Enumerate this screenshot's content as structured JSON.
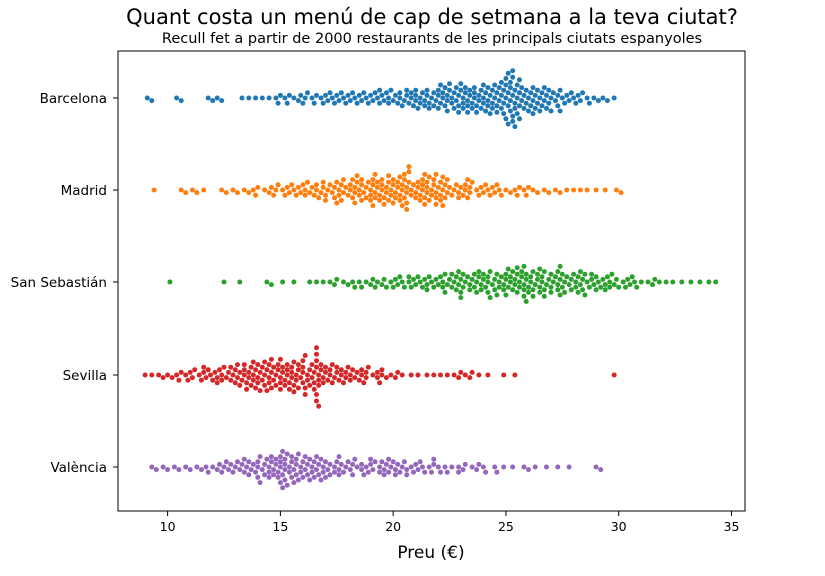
{
  "chart_data": {
    "type": "scatter",
    "subtype": "swarm",
    "title": "Quant costa un menú de cap de setmana a la teva ciutat?",
    "subtitle": "Recull fet a partir de 2000 restaurants de les principals ciutats espanyoles",
    "xlabel": "Preu (€)",
    "ylabel": "",
    "xlim": [
      7.8,
      35.6
    ],
    "xticks": [
      10,
      15,
      20,
      25,
      30,
      35
    ],
    "grid": false,
    "legend": "none",
    "categories": [
      "Barcelona",
      "Madrid",
      "San Sebastián",
      "Sevilla",
      "València"
    ],
    "series": [
      {
        "category": "Barcelona",
        "color": "#1f77b4",
        "values": [
          9.1,
          9.3,
          10.4,
          10.6,
          11.8,
          12.0,
          12.2,
          12.4,
          13.3,
          13.6,
          13.9,
          14.2,
          14.5,
          14.8,
          15.0,
          15.2,
          15.4,
          15.6,
          15.8,
          16.0,
          16.2,
          16.4,
          16.6,
          16.8,
          17.0,
          17.1,
          17.3,
          17.5,
          17.7,
          17.9,
          18.1,
          18.3,
          18.5,
          18.7,
          18.9,
          19.1,
          19.2,
          19.4,
          19.6,
          19.8,
          20.0,
          20.1,
          20.3,
          20.4,
          20.6,
          20.8,
          20.9,
          21.1,
          21.2,
          21.4,
          21.5,
          21.6,
          21.8,
          21.9,
          22.0,
          22.1,
          22.3,
          22.4,
          22.5,
          22.6,
          22.8,
          22.9,
          23.0,
          23.1,
          23.2,
          23.3,
          23.5,
          23.6,
          23.7,
          23.8,
          23.9,
          24.0,
          24.1,
          24.2,
          24.3,
          24.4,
          24.5,
          24.6,
          24.7,
          24.8,
          24.9,
          25.0,
          25.1,
          25.2,
          25.3,
          25.4,
          25.5,
          25.6,
          25.7,
          25.8,
          25.9,
          26.0,
          26.1,
          26.2,
          26.3,
          26.4,
          26.5,
          26.6,
          26.7,
          26.8,
          26.9,
          27.0,
          27.1,
          27.2,
          27.3,
          27.4,
          27.5,
          27.6,
          27.8,
          27.9,
          28.1,
          28.2,
          28.4,
          28.6,
          28.7,
          28.9,
          29.1,
          29.3,
          29.5,
          29.8,
          20.5,
          21.0,
          21.7,
          22.2,
          22.7,
          23.4,
          24.0,
          24.6,
          25.0,
          25.3,
          25.6,
          26.0,
          26.4,
          23.0,
          23.8,
          24.9,
          25.2,
          25.5,
          22.0,
          22.5,
          24.3,
          25.1,
          25.4,
          21.3,
          21.8,
          23.2,
          24.8,
          25.6,
          26.2,
          22.9,
          23.6,
          24.4,
          25.0,
          19.5,
          20.2,
          21.0,
          22.3,
          23.1,
          24.2,
          25.3,
          26.6,
          27.4,
          18.6,
          19.3,
          20.6,
          21.4,
          22.6,
          23.4,
          24.5,
          25.7,
          26.8,
          17.2,
          18.0,
          18.8,
          19.9,
          20.7,
          21.6,
          22.1,
          23.3,
          24.1,
          25.2,
          26.1,
          27.0,
          16.1,
          16.9,
          17.6,
          18.4,
          19.0,
          19.7,
          20.3,
          21.2,
          22.4,
          23.5,
          24.7,
          25.5,
          26.5,
          27.7,
          15.3,
          16.5,
          17.4,
          18.2,
          19.8,
          21.0,
          22.0,
          22.8,
          23.9,
          24.6,
          25.8,
          26.9,
          28.0,
          14.9,
          15.9,
          17.8,
          19.4,
          20.8,
          22.2,
          23.7,
          24.9,
          26.3,
          27.3,
          28.3,
          21.5,
          22.7,
          23.3,
          24.2,
          25.1,
          25.9,
          26.7,
          22.4,
          23.1,
          24.0,
          24.8,
          25.4,
          26.2,
          23.6,
          24.4,
          25.0,
          25.6,
          22.9,
          25.3,
          25.2,
          25.4,
          25.3,
          25.1
        ]
      },
      {
        "category": "Madrid",
        "color": "#ff7f0e",
        "values": [
          9.4,
          10.6,
          10.8,
          11.1,
          11.3,
          11.6,
          12.4,
          12.6,
          12.9,
          13.1,
          13.4,
          13.6,
          13.8,
          14.0,
          14.3,
          14.5,
          14.7,
          14.9,
          15.1,
          15.2,
          15.4,
          15.6,
          15.8,
          16.0,
          16.1,
          16.3,
          16.5,
          16.6,
          16.8,
          16.9,
          17.1,
          17.2,
          17.4,
          17.5,
          17.7,
          17.8,
          18.0,
          18.1,
          18.2,
          18.4,
          18.5,
          18.6,
          18.8,
          18.9,
          19.0,
          19.1,
          19.3,
          19.4,
          19.5,
          19.6,
          19.8,
          19.9,
          20.0,
          20.1,
          20.2,
          20.4,
          20.5,
          20.6,
          20.7,
          20.8,
          21.0,
          21.1,
          21.2,
          21.3,
          21.4,
          21.6,
          21.7,
          21.8,
          21.9,
          22.0,
          22.2,
          22.3,
          22.5,
          22.6,
          22.8,
          22.9,
          23.1,
          23.2,
          23.4,
          23.5,
          23.7,
          23.9,
          24.0,
          24.2,
          24.4,
          24.6,
          24.8,
          25.0,
          25.2,
          25.4,
          25.6,
          25.8,
          26.0,
          26.2,
          26.4,
          26.7,
          26.9,
          27.2,
          27.4,
          27.7,
          28.0,
          28.3,
          28.6,
          29.0,
          29.4,
          29.9,
          30.1,
          16.4,
          17.0,
          17.6,
          18.3,
          18.7,
          19.2,
          19.7,
          20.3,
          20.9,
          21.5,
          22.1,
          22.7,
          23.3,
          24.1,
          17.3,
          17.9,
          18.4,
          19.0,
          19.5,
          20.0,
          20.5,
          21.0,
          21.6,
          22.2,
          23.0,
          18.1,
          18.6,
          19.1,
          19.6,
          20.1,
          20.6,
          21.1,
          21.7,
          22.4,
          19.3,
          19.8,
          20.3,
          20.7,
          21.3,
          21.9,
          15.5,
          16.2,
          17.0,
          17.8,
          18.5,
          19.2,
          20.0,
          20.8,
          21.5,
          22.3,
          23.2,
          24.3,
          25.5,
          14.6,
          15.3,
          16.1,
          16.9,
          17.6,
          18.3,
          19.1,
          19.9,
          20.7,
          21.4,
          22.1,
          22.9,
          23.8,
          24.7,
          25.9,
          13.9,
          14.8,
          15.7,
          16.6,
          17.4,
          18.2,
          19.0,
          19.8,
          20.6,
          21.5,
          22.4,
          23.4,
          24.5,
          15.9,
          16.7,
          17.5,
          18.3,
          19.2,
          20.2,
          21.2,
          22.2,
          23.3,
          17.7,
          18.6,
          19.5,
          20.4,
          21.3,
          22.1,
          18.8,
          19.7,
          20.5,
          21.4,
          20.3,
          20.6,
          21.9,
          21.8,
          21.9,
          20.4,
          19.4
        ]
      },
      {
        "category": "San Sebastián",
        "color": "#2ca02c",
        "values": [
          10.1,
          12.5,
          13.2,
          14.4,
          14.6,
          15.1,
          15.6,
          16.3,
          16.6,
          16.9,
          17.2,
          17.5,
          17.8,
          18.0,
          18.3,
          18.5,
          18.8,
          19.0,
          19.2,
          19.5,
          19.7,
          19.9,
          20.1,
          20.3,
          20.5,
          20.7,
          20.9,
          21.1,
          21.3,
          21.5,
          21.7,
          21.9,
          22.1,
          22.2,
          22.4,
          22.6,
          22.8,
          22.9,
          23.1,
          23.3,
          23.4,
          23.6,
          23.8,
          23.9,
          24.1,
          24.2,
          24.4,
          24.6,
          24.7,
          24.9,
          25.0,
          25.2,
          25.3,
          25.5,
          25.6,
          25.8,
          25.9,
          26.1,
          26.2,
          26.4,
          26.5,
          26.7,
          26.8,
          27.0,
          27.1,
          27.3,
          27.4,
          27.6,
          27.7,
          27.9,
          28.0,
          28.2,
          28.3,
          28.5,
          28.6,
          28.8,
          28.9,
          29.1,
          29.3,
          29.4,
          29.6,
          29.8,
          30.0,
          30.2,
          30.4,
          30.6,
          30.8,
          31.0,
          31.3,
          31.5,
          31.8,
          32.1,
          32.4,
          32.8,
          33.2,
          33.6,
          34.0,
          34.3,
          19.6,
          20.4,
          21.2,
          22.0,
          22.7,
          23.5,
          24.3,
          25.1,
          25.8,
          26.6,
          27.3,
          28.1,
          28.8,
          29.5,
          30.3,
          20.8,
          21.6,
          22.3,
          23.0,
          23.7,
          24.5,
          25.2,
          26.0,
          26.7,
          27.5,
          28.3,
          29.0,
          29.7,
          21.4,
          22.2,
          22.9,
          23.6,
          24.3,
          25.0,
          25.7,
          26.3,
          27.0,
          27.8,
          28.5,
          29.2,
          22.5,
          23.2,
          24.0,
          24.8,
          25.5,
          26.2,
          26.9,
          27.6,
          28.4,
          23.0,
          23.8,
          24.6,
          25.4,
          26.0,
          26.6,
          27.4,
          24.2,
          25.1,
          25.9,
          26.5,
          27.2,
          18.6,
          19.3,
          20.0,
          20.7,
          21.5,
          22.3,
          23.1,
          23.9,
          24.7,
          25.6,
          26.4,
          27.3,
          28.1,
          29.0,
          29.9,
          30.7,
          31.6,
          17.4,
          18.2,
          19.1,
          20.2,
          21.0,
          21.8,
          22.6,
          23.4,
          24.2,
          25.0,
          25.8,
          26.7,
          27.5,
          28.4,
          29.4,
          30.5,
          22.8,
          23.7,
          24.5,
          25.3,
          26.1,
          27.0,
          27.9,
          28.7,
          29.6,
          24.0,
          24.9,
          25.7,
          26.5,
          27.4,
          28.2,
          23.0,
          25.9,
          25.8,
          26.2,
          25.5,
          25.4
        ]
      },
      {
        "category": "Sevilla",
        "color": "#d62728",
        "values": [
          9.0,
          9.3,
          9.6,
          9.8,
          10.0,
          10.2,
          10.4,
          10.6,
          10.8,
          11.0,
          11.2,
          11.4,
          11.6,
          11.8,
          12.0,
          12.2,
          12.4,
          12.6,
          12.8,
          13.0,
          13.1,
          13.3,
          13.5,
          13.7,
          13.8,
          14.0,
          14.2,
          14.3,
          14.5,
          14.7,
          14.8,
          15.0,
          15.2,
          15.3,
          15.5,
          15.7,
          15.8,
          16.0,
          16.2,
          16.4,
          16.5,
          16.7,
          16.9,
          17.1,
          17.3,
          17.5,
          17.7,
          17.9,
          18.1,
          18.3,
          18.5,
          18.7,
          18.9,
          19.1,
          19.3,
          19.5,
          19.7,
          19.9,
          20.1,
          20.4,
          20.8,
          21.1,
          21.5,
          21.8,
          22.1,
          22.4,
          22.7,
          23.0,
          23.2,
          23.5,
          23.8,
          24.2,
          24.9,
          25.4,
          29.8,
          11.5,
          12.1,
          12.7,
          13.2,
          13.6,
          14.1,
          14.6,
          15.1,
          15.6,
          16.1,
          16.6,
          17.0,
          17.6,
          18.2,
          18.8,
          19.4,
          12.3,
          12.9,
          13.4,
          13.9,
          14.4,
          14.9,
          15.4,
          15.9,
          16.3,
          16.8,
          17.4,
          18.0,
          18.6,
          13.1,
          13.6,
          14.1,
          14.6,
          15.1,
          15.6,
          16.1,
          16.6,
          17.2,
          17.8,
          13.8,
          14.3,
          14.8,
          15.3,
          15.8,
          16.3,
          16.8,
          14.5,
          15.0,
          15.5,
          16.0,
          16.5,
          10.5,
          11.1,
          11.7,
          12.4,
          13.0,
          13.5,
          14.0,
          14.6,
          15.2,
          15.7,
          16.2,
          16.9,
          17.5,
          18.1,
          18.8,
          19.5,
          20.2,
          22.9,
          10.9,
          11.6,
          12.2,
          12.8,
          13.4,
          13.9,
          14.4,
          15.0,
          15.5,
          16.0,
          16.6,
          17.2,
          17.9,
          18.6,
          19.3,
          23.4,
          11.9,
          12.5,
          13.2,
          13.7,
          14.2,
          14.7,
          15.3,
          15.8,
          16.4,
          17.0,
          17.7,
          18.4,
          13.4,
          14.0,
          14.5,
          15.0,
          15.6,
          16.1,
          16.7,
          17.3,
          14.3,
          14.9,
          15.4,
          16.0,
          16.6,
          13.8,
          16.7,
          16.6,
          16.7,
          16.6,
          16.5
        ]
      },
      {
        "category": "València",
        "color": "#9467bd",
        "values": [
          9.3,
          9.5,
          9.8,
          10.0,
          10.3,
          10.5,
          10.8,
          11.0,
          11.3,
          11.5,
          11.8,
          12.0,
          12.2,
          12.4,
          12.6,
          12.8,
          13.0,
          13.2,
          13.4,
          13.6,
          13.8,
          14.0,
          14.1,
          14.3,
          14.5,
          14.7,
          14.8,
          15.0,
          15.2,
          15.3,
          15.5,
          15.7,
          15.8,
          16.0,
          16.2,
          16.3,
          16.5,
          16.7,
          16.8,
          17.0,
          17.2,
          17.4,
          17.6,
          17.8,
          18.0,
          18.2,
          18.4,
          18.6,
          18.8,
          19.0,
          19.2,
          19.4,
          19.6,
          19.8,
          20.0,
          20.2,
          20.4,
          20.6,
          20.8,
          21.0,
          21.2,
          21.4,
          21.6,
          21.8,
          22.0,
          22.3,
          22.6,
          22.9,
          23.2,
          23.5,
          23.8,
          24.1,
          24.5,
          24.9,
          25.3,
          25.8,
          26.3,
          26.8,
          27.3,
          27.8,
          29.0,
          29.2,
          12.5,
          13.1,
          13.6,
          14.1,
          14.6,
          15.1,
          15.6,
          16.1,
          16.6,
          17.1,
          17.6,
          18.1,
          18.6,
          19.1,
          19.6,
          20.1,
          20.6,
          21.1,
          21.7,
          22.4,
          23.1,
          24.0,
          13.3,
          13.9,
          14.4,
          14.9,
          15.4,
          15.9,
          16.4,
          16.9,
          17.5,
          18.2,
          18.9,
          19.5,
          20.3,
          14.2,
          14.7,
          15.2,
          15.7,
          16.2,
          16.8,
          17.4,
          19.7,
          14.9,
          15.4,
          15.9,
          16.5,
          15.1,
          15.6,
          11.7,
          12.3,
          12.9,
          13.5,
          14.0,
          14.6,
          15.2,
          15.7,
          16.3,
          16.9,
          17.6,
          18.3,
          19.0,
          19.8,
          20.5,
          21.3,
          22.1,
          22.9,
          23.7,
          24.6,
          26.0,
          12.7,
          13.4,
          14.0,
          14.5,
          15.0,
          15.5,
          16.0,
          16.6,
          17.2,
          17.9,
          18.7,
          19.4,
          20.1,
          20.9,
          21.8,
          13.7,
          14.3,
          14.8,
          15.3,
          15.8,
          16.4,
          17.0,
          17.7,
          19.9,
          14.5,
          15.0,
          15.5,
          16.1,
          16.7,
          15.2,
          15.1,
          15.0
        ]
      }
    ]
  }
}
